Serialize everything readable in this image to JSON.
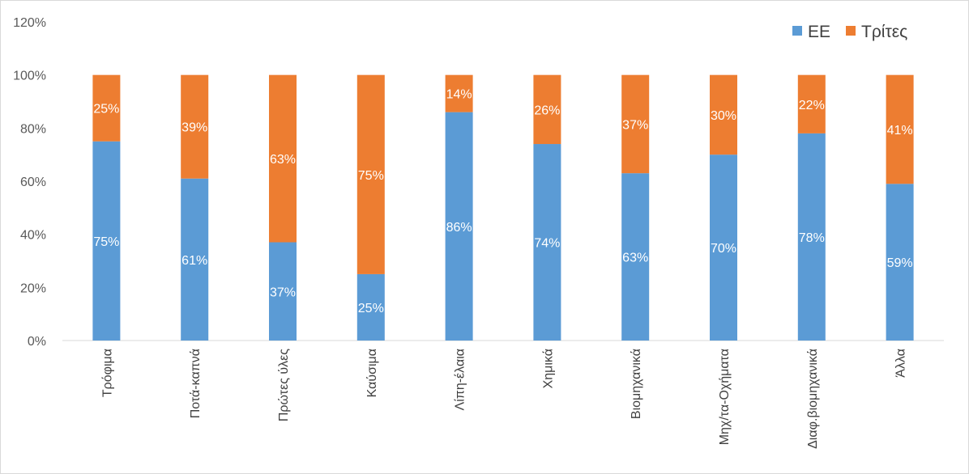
{
  "chart_data": {
    "type": "bar",
    "stacked": true,
    "title": "",
    "xlabel": "",
    "ylabel": "",
    "ylim": [
      0,
      120
    ],
    "y_ticks": [
      "0%",
      "20%",
      "40%",
      "60%",
      "80%",
      "100%",
      "120%"
    ],
    "y_tick_values": [
      0,
      20,
      40,
      60,
      80,
      100,
      120
    ],
    "grid": false,
    "legend_position": "top-right",
    "categories": [
      "Τρόφιμα",
      "Ποτά-καπνά",
      "Πρώτες ύλες",
      "Καύσιμα",
      "Λίπη-έλαια",
      "Χημικά",
      "Βιομηχανικά",
      "Μηχ/τα-Οχήματα",
      "Διαφ.βιομηχανικά",
      "Άλλα"
    ],
    "series": [
      {
        "name": "ΕΕ",
        "color": "#5b9bd5",
        "values": [
          75,
          61,
          37,
          25,
          86,
          74,
          63,
          70,
          78,
          59
        ],
        "labels": [
          "75%",
          "61%",
          "37%",
          "25%",
          "86%",
          "74%",
          "63%",
          "70%",
          "78%",
          "59%"
        ]
      },
      {
        "name": "Τρίτες",
        "color": "#ed7d31",
        "values": [
          25,
          39,
          63,
          75,
          14,
          26,
          37,
          30,
          22,
          41
        ],
        "labels": [
          "25%",
          "39%",
          "63%",
          "75%",
          "14%",
          "26%",
          "37%",
          "30%",
          "22%",
          "41%"
        ]
      }
    ]
  }
}
